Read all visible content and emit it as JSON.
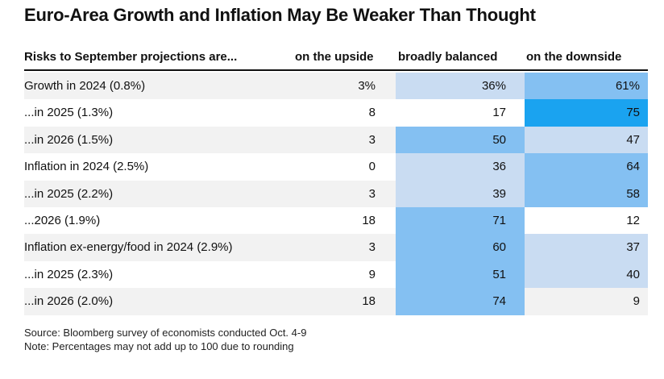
{
  "title": "Euro-Area Growth and Inflation May Be Weaker Than Thought",
  "chart_data": {
    "type": "table",
    "columns": [
      "Risks to September projections are...",
      "on the upside",
      "broadly balanced",
      "on the downside"
    ],
    "rows": [
      {
        "label": "Growth in 2024 (0.8%)",
        "up": "3%",
        "balanced": "36%",
        "down": "61%"
      },
      {
        "label": "...in 2025 (1.3%)",
        "up": "8",
        "balanced": "17",
        "down": "75"
      },
      {
        "label": "...in 2026 (1.5%)",
        "up": "3",
        "balanced": "50",
        "down": "47"
      },
      {
        "label": "Inflation in 2024 (2.5%)",
        "up": "0",
        "balanced": "36",
        "down": "64"
      },
      {
        "label": "...in 2025 (2.2%)",
        "up": "3",
        "balanced": "39",
        "down": "58"
      },
      {
        "label": "...2026 (1.9%)",
        "up": "18",
        "balanced": "71",
        "down": "12"
      },
      {
        "label": "Inflation ex-energy/food in 2024 (2.9%)",
        "up": "3",
        "balanced": "60",
        "down": "37"
      },
      {
        "label": "...in 2025 (2.3%)",
        "up": "9",
        "balanced": "51",
        "down": "40"
      },
      {
        "label": "...in 2026 (2.0%)",
        "up": "18",
        "balanced": "74",
        "down": "9"
      }
    ],
    "colors": {
      "low": "#c9dcf2",
      "mid": "#84c0f2",
      "high": "#1aa3f0",
      "base": "#f2f2f2",
      "alt": "#ffffff"
    }
  },
  "footnotes": {
    "source": "Source: Bloomberg survey of economists conducted Oct. 4-9",
    "note": "Note: Percentages may not add up to 100 due to rounding"
  }
}
